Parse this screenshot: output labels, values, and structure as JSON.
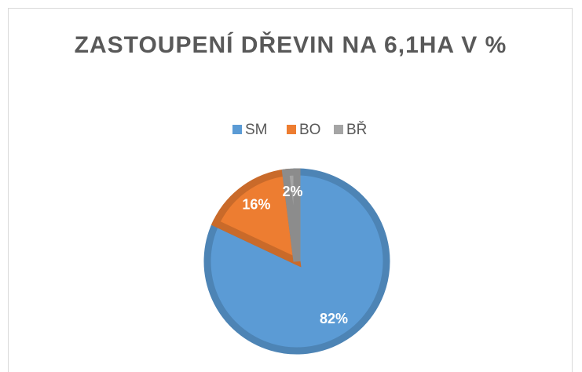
{
  "chart_data": {
    "type": "pie",
    "title": "ZASTOUPENÍ DŘEVIN NA 6,1HA V %",
    "categories": [
      "SM",
      "BO",
      "BŘ"
    ],
    "values": [
      82,
      16,
      2
    ],
    "value_labels": [
      "82%",
      "16%",
      "2%"
    ],
    "colors": [
      "#5b9bd5",
      "#ed7d31",
      "#a5a5a5"
    ],
    "legend": "top"
  }
}
